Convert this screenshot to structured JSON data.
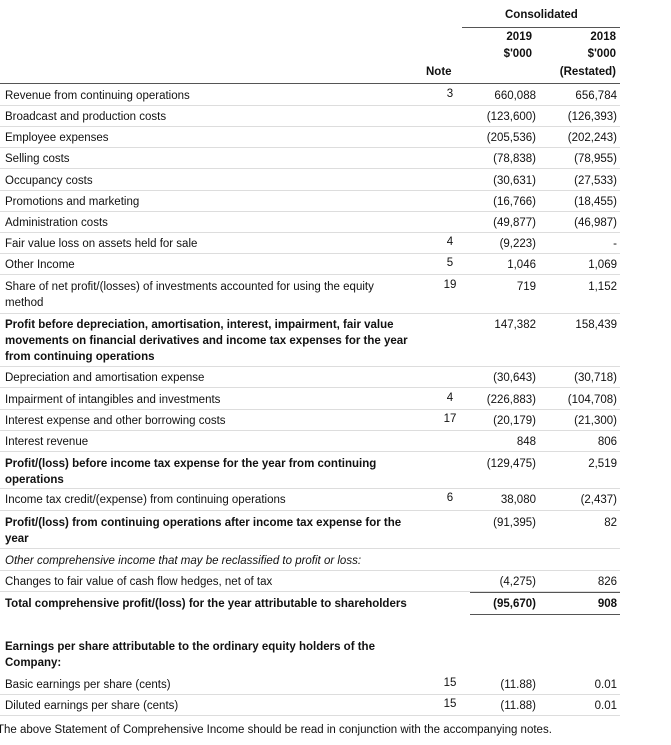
{
  "header": {
    "group": "Consolidated",
    "years": [
      "2019",
      "2018"
    ],
    "units": [
      "$'000",
      "$'000"
    ],
    "note": "Note",
    "restated": "(Restated)"
  },
  "rows": [
    {
      "label": "Revenue from continuing operations",
      "note": "3",
      "v2019": "660,088",
      "v2018": "656,784"
    },
    {
      "label": "Broadcast and production costs",
      "v2019": "(123,600)",
      "v2018": "(126,393)"
    },
    {
      "label": "Employee expenses",
      "v2019": "(205,536)",
      "v2018": "(202,243)"
    },
    {
      "label": "Selling costs",
      "v2019": "(78,838)",
      "v2018": "(78,955)"
    },
    {
      "label": "Occupancy costs",
      "v2019": "(30,631)",
      "v2018": "(27,533)"
    },
    {
      "label": "Promotions and marketing",
      "v2019": "(16,766)",
      "v2018": "(18,455)"
    },
    {
      "label": "Administration costs",
      "v2019": "(49,877)",
      "v2018": "(46,987)"
    },
    {
      "label": "Fair value loss on assets held for sale",
      "note": "4",
      "v2019": "(9,223)",
      "v2018": "-"
    },
    {
      "label": "Other Income",
      "note": "5",
      "v2019": "1,046",
      "v2018": "1,069"
    },
    {
      "label": "Share of net profit/(losses) of investments accounted for using the equity method",
      "note": "19",
      "v2019": "719",
      "v2018": "1,152"
    },
    {
      "label": "Profit before depreciation, amortisation, interest, impairment, fair value movements on financial derivatives and income tax expenses for the year from continuing operations",
      "v2019": "147,382",
      "v2018": "158,439"
    },
    {
      "label": "Depreciation and amortisation expense",
      "v2019": "(30,643)",
      "v2018": "(30,718)"
    },
    {
      "label": "Impairment of intangibles and investments",
      "note": "4",
      "v2019": "(226,883)",
      "v2018": "(104,708)"
    },
    {
      "label": "Interest expense and other borrowing costs",
      "note": "17",
      "v2019": "(20,179)",
      "v2018": "(21,300)"
    },
    {
      "label": "Interest revenue",
      "v2019": "848",
      "v2018": "806"
    },
    {
      "label": "Profit/(loss) before income tax expense for the year from continuing operations",
      "v2019": "(129,475)",
      "v2018": "2,519"
    },
    {
      "label": "Income tax credit/(expense) from continuing operations",
      "note": "6",
      "v2019": "38,080",
      "v2018": "(2,437)"
    },
    {
      "label": "Profit/(loss) from continuing operations after income tax expense for the year",
      "v2019": "(91,395)",
      "v2018": "82"
    },
    {
      "label": "Other comprehensive income that may be reclassified to profit or loss:"
    },
    {
      "label": "Changes to fair value of cash flow hedges, net of tax",
      "v2019": "(4,275)",
      "v2018": "826"
    },
    {
      "label": "Total comprehensive profit/(loss) for the year attributable to shareholders",
      "v2019": "(95,670)",
      "v2018": "908"
    },
    {
      "label": "Earnings per share attributable to the ordinary equity holders of the Company:"
    },
    {
      "label": "Basic earnings per share (cents)",
      "note": "15",
      "v2019": "(11.88)",
      "v2018": "0.01"
    },
    {
      "label": "Diluted earnings per share (cents)",
      "note": "15",
      "v2019": "(11.88)",
      "v2018": "0.01"
    }
  ],
  "footer": "The above Statement of Comprehensive Income should be read in conjunction with the accompanying notes."
}
